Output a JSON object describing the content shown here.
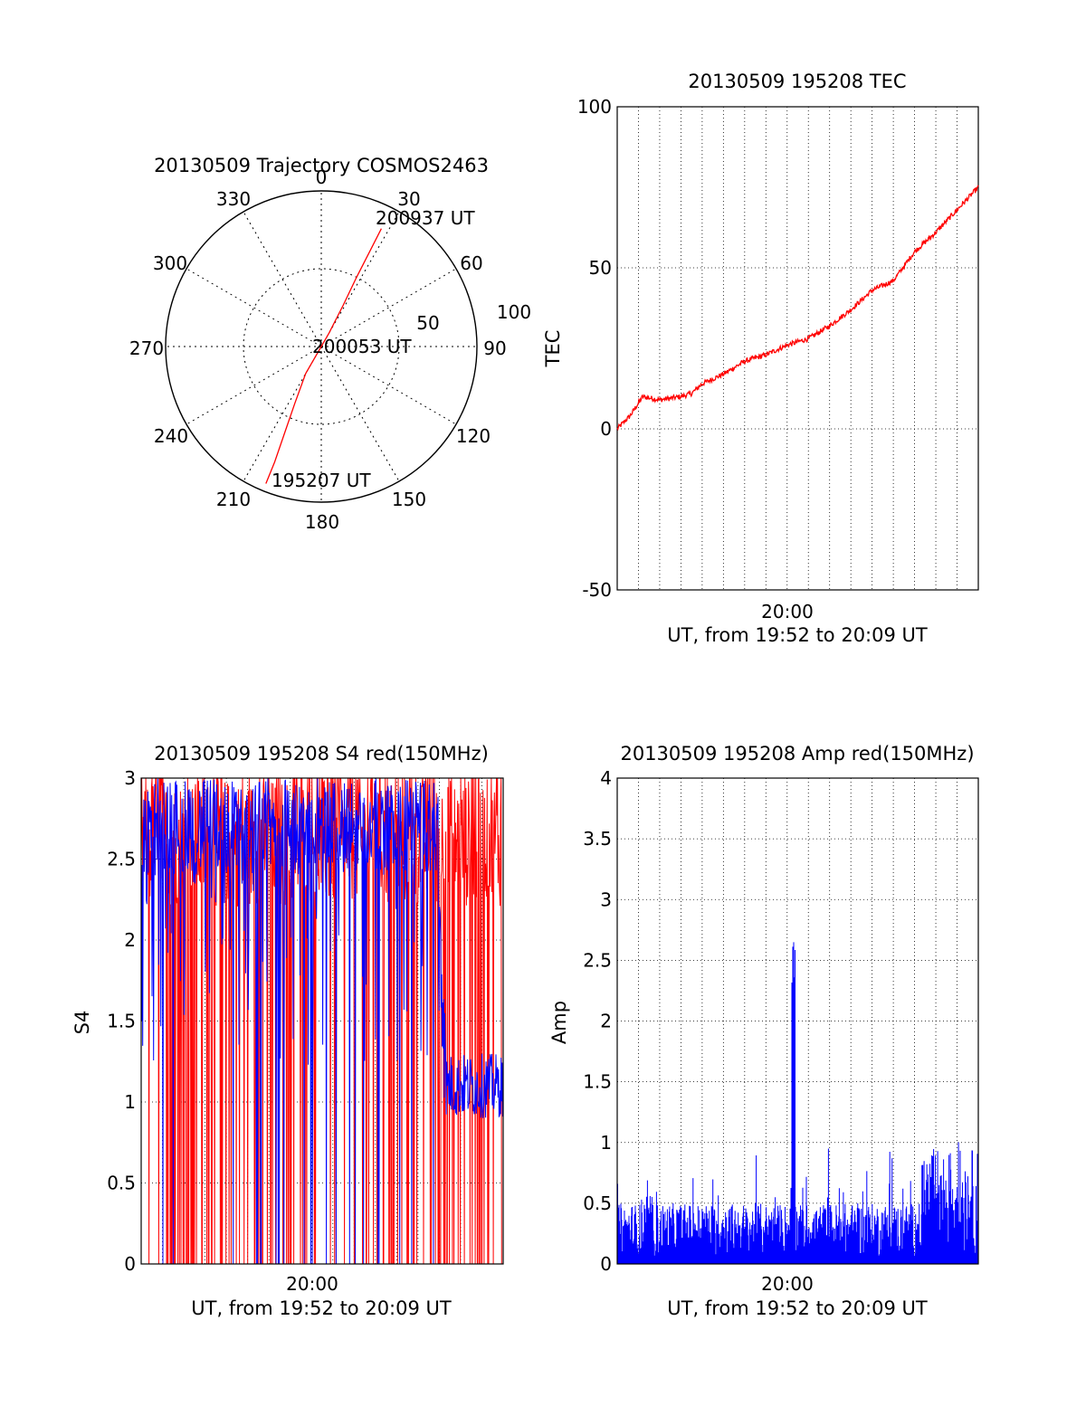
{
  "chart_data": [
    {
      "type": "polar",
      "title": "20130509 Trajectory COSMOS2463",
      "angle_labels": [
        "0",
        "30",
        "60",
        "90",
        "120",
        "150",
        "180",
        "210",
        "240",
        "270",
        "300",
        "330"
      ],
      "radius_labels": [
        "50",
        "100"
      ],
      "rlim": [
        0,
        100
      ],
      "grid": true,
      "series": [
        {
          "name": "trajectory",
          "color": "#ff0000",
          "points": [
            {
              "az": 202,
              "r": 95
            },
            {
              "az": 202,
              "r": 80
            },
            {
              "az": 203,
              "r": 60
            },
            {
              "az": 205,
              "r": 40
            },
            {
              "az": 210,
              "r": 20
            },
            {
              "az": 30,
              "r": 10
            },
            {
              "az": 28,
              "r": 30
            },
            {
              "az": 27,
              "r": 50
            },
            {
              "az": 27,
              "r": 70
            },
            {
              "az": 27,
              "r": 85
            }
          ]
        }
      ],
      "annotations": [
        {
          "text": "200937 UT",
          "az": 27,
          "r": 85
        },
        {
          "text": "200053 UT",
          "az": 90,
          "r": 0
        },
        {
          "text": "195207 UT",
          "az": 202,
          "r": 95
        }
      ]
    },
    {
      "type": "line",
      "title": "20130509 195208 TEC",
      "ylabel": "TEC",
      "xlabel": "UT, from 19:52 to 20:09 UT",
      "xlim": [
        0,
        17
      ],
      "ylim": [
        -50,
        100
      ],
      "y_ticks": [
        "100",
        "50",
        "0",
        "-50"
      ],
      "x_tick_labels": [
        {
          "at": 8,
          "label": "20:00"
        }
      ],
      "grid": true,
      "series": [
        {
          "name": "TEC",
          "color": "#ff0000",
          "x": [
            0,
            0.6,
            1.2,
            2,
            3,
            3.5,
            4,
            5,
            6,
            7,
            8,
            9,
            10,
            11,
            11.5,
            12,
            13,
            14,
            15,
            16,
            17
          ],
          "y": [
            0,
            4,
            10,
            9,
            10,
            11,
            14,
            17,
            21,
            23,
            26,
            28,
            32,
            37,
            40,
            43,
            46,
            55,
            61,
            68,
            75
          ]
        }
      ]
    },
    {
      "type": "line",
      "title": "20130509 195208 S4 red(150MHz)",
      "ylabel": "S4",
      "xlabel": "UT, from 19:52 to 20:09 UT",
      "xlim": [
        0,
        17
      ],
      "ylim": [
        0,
        3
      ],
      "y_ticks": [
        "3",
        "2.5",
        "2",
        "1.5",
        "1",
        "0.5",
        "0"
      ],
      "x_tick_labels": [
        {
          "at": 8,
          "label": "20:00"
        }
      ],
      "grid": true,
      "series": [
        {
          "name": "red",
          "color": "#ff0000",
          "x_range": [
            0,
            17
          ],
          "y_range": [
            0,
            3
          ]
        },
        {
          "name": "blue",
          "color": "#0000ff",
          "x_range": [
            0,
            17
          ],
          "y_range": [
            0,
            3
          ]
        }
      ]
    },
    {
      "type": "line",
      "title": "20130509 195208 Amp red(150MHz)",
      "ylabel": "Amp",
      "xlabel": "UT, from 19:52 to 20:09 UT",
      "xlim": [
        0,
        17
      ],
      "ylim": [
        0,
        4
      ],
      "y_ticks": [
        "4",
        "3.5",
        "3",
        "2.5",
        "2",
        "1.5",
        "1",
        "0.5",
        "0"
      ],
      "x_tick_labels": [
        {
          "at": 8,
          "label": "20:00"
        }
      ],
      "grid": true,
      "series": [
        {
          "name": "blue",
          "color": "#0000ff",
          "peak": 2.65,
          "peak_x": 8.3,
          "baseline": 0.35
        }
      ]
    }
  ]
}
